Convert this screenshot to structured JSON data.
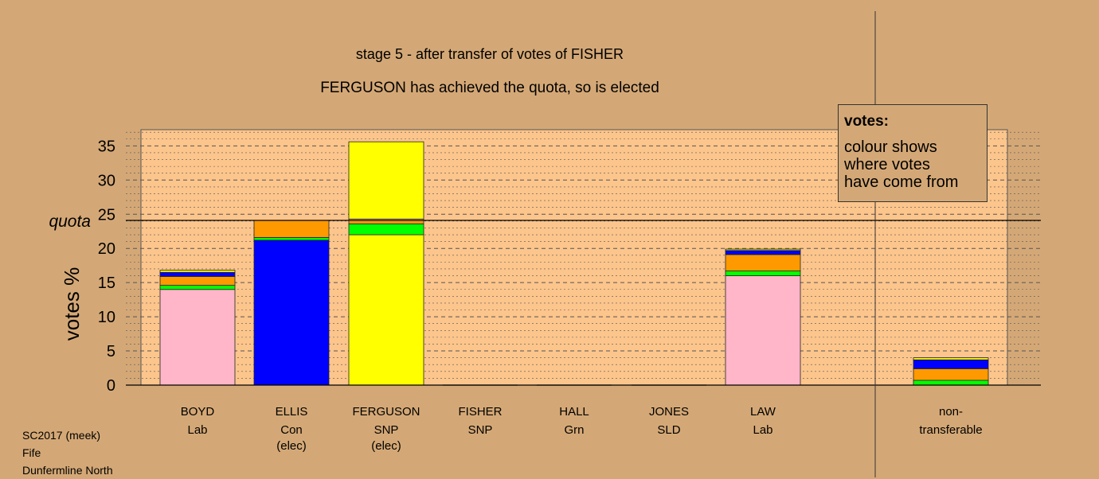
{
  "chart_data": {
    "type": "bar",
    "stacked": true,
    "title": "stage 5 - after transfer of votes of FISHER",
    "subtitle": "FERGUSON has achieved the quota, so is elected",
    "ylabel": "votes %",
    "ylim": [
      0,
      37.5
    ],
    "yticks": [
      "0",
      "5",
      "10",
      "15",
      "20",
      "25",
      "30",
      "35"
    ],
    "quota": {
      "label": "quota",
      "value": 24.1
    },
    "candidates": [
      {
        "name": "BOYD",
        "party": "Lab",
        "status": ""
      },
      {
        "name": "ELLIS",
        "party": "Con",
        "status": "(elec)"
      },
      {
        "name": "FERGUSON",
        "party": "SNP",
        "status": "(elec)"
      },
      {
        "name": "FISHER",
        "party": "SNP",
        "status": ""
      },
      {
        "name": "HALL",
        "party": "Grn",
        "status": ""
      },
      {
        "name": "JONES",
        "party": "SLD",
        "status": ""
      },
      {
        "name": "LAW",
        "party": "Lab",
        "status": ""
      }
    ],
    "nontransferable": {
      "line1": "non-",
      "line2": "transferable"
    },
    "source_colors": {
      "Lab": "#ffb6c8",
      "Con": "#0000ff",
      "SNP": "#ffff00",
      "Grn": "#00ff00",
      "SLD": "#ff9900"
    },
    "stacks": [
      [
        {
          "color": "#ffb6c8",
          "value": 14.0
        },
        {
          "color": "#00ff00",
          "value": 0.6
        },
        {
          "color": "#ff9900",
          "value": 1.3
        },
        {
          "color": "#0000ff",
          "value": 0.6
        },
        {
          "color": "#ffff00",
          "value": 0.3
        }
      ],
      [
        {
          "color": "#0000ff",
          "value": 21.2
        },
        {
          "color": "#00ff00",
          "value": 0.4
        },
        {
          "color": "#ff9900",
          "value": 2.5
        }
      ],
      [
        {
          "color": "#ffff00",
          "value": 22.0
        },
        {
          "color": "#00ff00",
          "value": 1.6
        },
        {
          "color": "#ff9900",
          "value": 0.5
        },
        {
          "color": "#ffb6c8",
          "value": 0.2
        },
        {
          "color": "#ffff00",
          "value": 11.3
        }
      ],
      [],
      [],
      [],
      [
        {
          "color": "#ffb6c8",
          "value": 16.0
        },
        {
          "color": "#00ff00",
          "value": 0.7
        },
        {
          "color": "#ff9900",
          "value": 2.4
        },
        {
          "color": "#0000ff",
          "value": 0.6
        },
        {
          "color": "#ffff00",
          "value": 0.2
        }
      ]
    ],
    "nontransferable_stack": [
      {
        "color": "#00ff00",
        "value": 0.7
      },
      {
        "color": "#ff9900",
        "value": 1.7
      },
      {
        "color": "#0000ff",
        "value": 1.3
      },
      {
        "color": "#ffff00",
        "value": 0.3
      }
    ],
    "legend": {
      "title": "votes:",
      "lines": [
        "colour shows",
        "where votes",
        "have come from"
      ]
    },
    "grid": true
  },
  "footer": {
    "line1": "SC2017 (meek)",
    "line2": "Fife",
    "line3": "Dunfermline North"
  }
}
